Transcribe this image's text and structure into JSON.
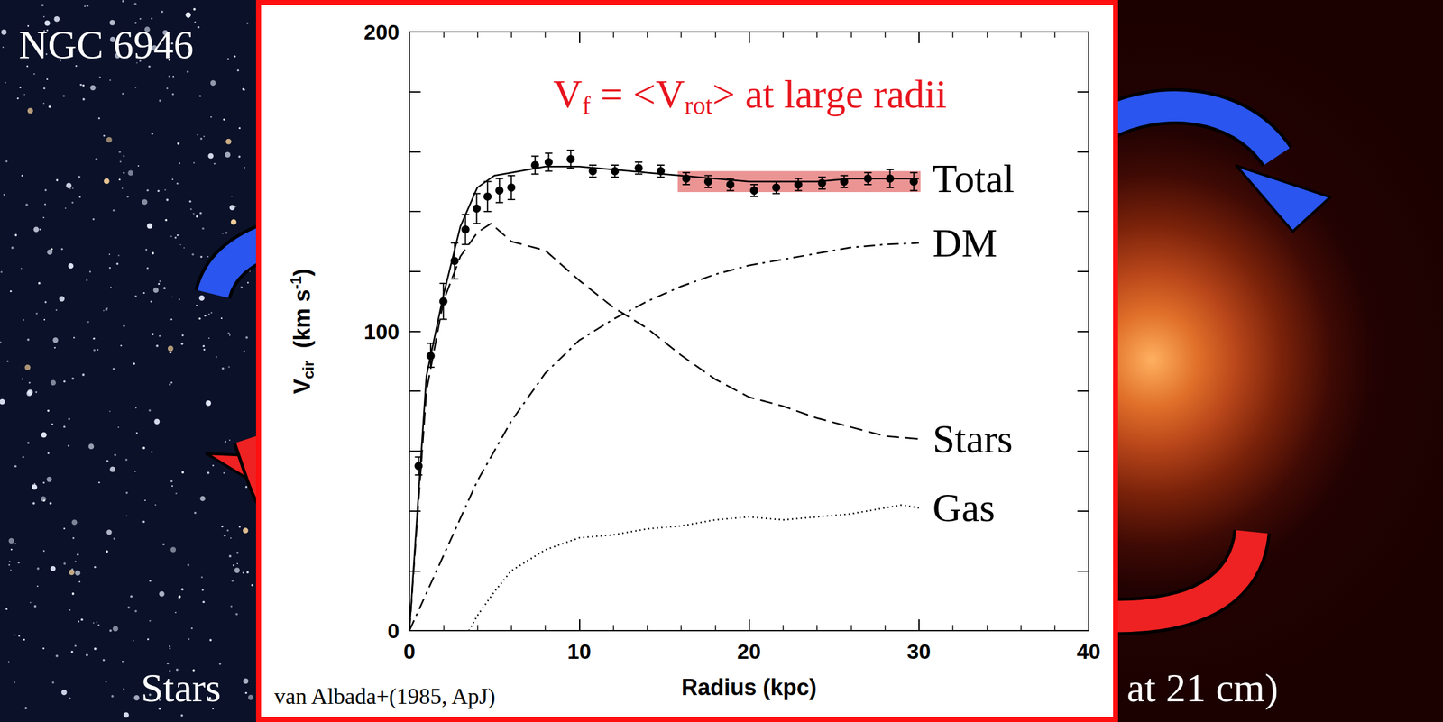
{
  "background": {
    "title": "NGC 6946",
    "left_caption": "Stars",
    "right_caption": "at 21 cm)"
  },
  "chart_data": {
    "type": "line",
    "annotation": {
      "color": "#e8141e",
      "parts": [
        {
          "text": "V"
        },
        {
          "text": "f",
          "sub": true
        },
        {
          "text": " = <V"
        },
        {
          "text": "rot",
          "sub": true
        },
        {
          "text": "> at large radii"
        }
      ]
    },
    "source": "van Albada+(1985, ApJ)",
    "x_label": "Radius (kpc)",
    "y_label": [
      {
        "text": "V"
      },
      {
        "text": "cir",
        "sub": true
      },
      {
        "text": "  (km s"
      },
      {
        "text": "-1",
        "sup": true
      },
      {
        "text": ")"
      }
    ],
    "xlim": [
      0,
      40
    ],
    "xticks": [
      0,
      10,
      20,
      30,
      40
    ],
    "ylim": [
      0,
      200
    ],
    "yticks": [
      0,
      100,
      200
    ],
    "grid": false,
    "points": {
      "type": "scatter",
      "marker": "circle",
      "color": "#000000",
      "x": [
        0.54,
        1.25,
        2.0,
        2.66,
        3.3,
        3.96,
        4.6,
        5.3,
        6.0,
        7.4,
        8.2,
        9.5,
        10.8,
        12.1,
        13.5,
        14.8,
        16.3,
        17.6,
        18.9,
        20.3,
        21.6,
        22.9,
        24.3,
        25.6,
        27.0,
        28.3,
        29.7
      ],
      "values": [
        55,
        92,
        110,
        123.5,
        134,
        141,
        145,
        147,
        148,
        155.5,
        156.5,
        157.5,
        153.5,
        153.5,
        154.5,
        153.5,
        151,
        150,
        149,
        147,
        148,
        149,
        149.5,
        150,
        151,
        151,
        150
      ],
      "errors": [
        3,
        4,
        6,
        6,
        5,
        5,
        5,
        4,
        4,
        3,
        3,
        3,
        2,
        2,
        2,
        2,
        2,
        2,
        2,
        2,
        2,
        2,
        2,
        2,
        2,
        3,
        3
      ]
    },
    "highlight": {
      "x": [
        15.8,
        30.1
      ],
      "y": [
        146.5,
        153.5
      ],
      "color": "#e05a5a"
    },
    "series": [
      {
        "name": "Total",
        "color": "#000000",
        "line_style": "solid",
        "x": [
          0,
          1,
          2,
          3,
          4,
          5,
          6,
          8,
          10,
          12,
          14,
          16,
          18,
          20,
          22,
          24,
          26,
          28,
          30
        ],
        "values": [
          0,
          85,
          112,
          135,
          148,
          152,
          153,
          155,
          155,
          154,
          153,
          152,
          151,
          150,
          150,
          150,
          151,
          151,
          151
        ]
      },
      {
        "name": "DM",
        "color": "#000000",
        "line_style": "dashdot",
        "x": [
          0,
          2,
          4,
          6,
          8,
          10,
          12,
          14,
          16,
          18,
          20,
          22,
          24,
          26,
          28,
          30
        ],
        "values": [
          0,
          25,
          50,
          70,
          86,
          97,
          104,
          110,
          115,
          119,
          122,
          124,
          126,
          128,
          129,
          129.5
        ]
      },
      {
        "name": "Stars",
        "color": "#000000",
        "line_style": "dashed",
        "x": [
          0,
          1,
          2,
          3,
          4,
          4.8,
          6,
          8,
          10,
          12,
          14,
          16,
          18,
          20,
          22,
          24,
          26,
          28,
          30
        ],
        "values": [
          0,
          80,
          110,
          125,
          133,
          136,
          130,
          127,
          117,
          108,
          101,
          92,
          84,
          78,
          75,
          71,
          68,
          65,
          64
        ]
      },
      {
        "name": "Gas",
        "color": "#000000",
        "line_style": "dotted",
        "x": [
          3.5,
          4,
          5,
          6,
          8,
          10,
          12,
          14,
          16,
          18,
          20,
          22,
          24,
          26,
          28,
          29,
          30
        ],
        "values": [
          0,
          5,
          13,
          20,
          27,
          31,
          32,
          34,
          35,
          37,
          38,
          37,
          38,
          39,
          41,
          42,
          41
        ]
      }
    ]
  }
}
